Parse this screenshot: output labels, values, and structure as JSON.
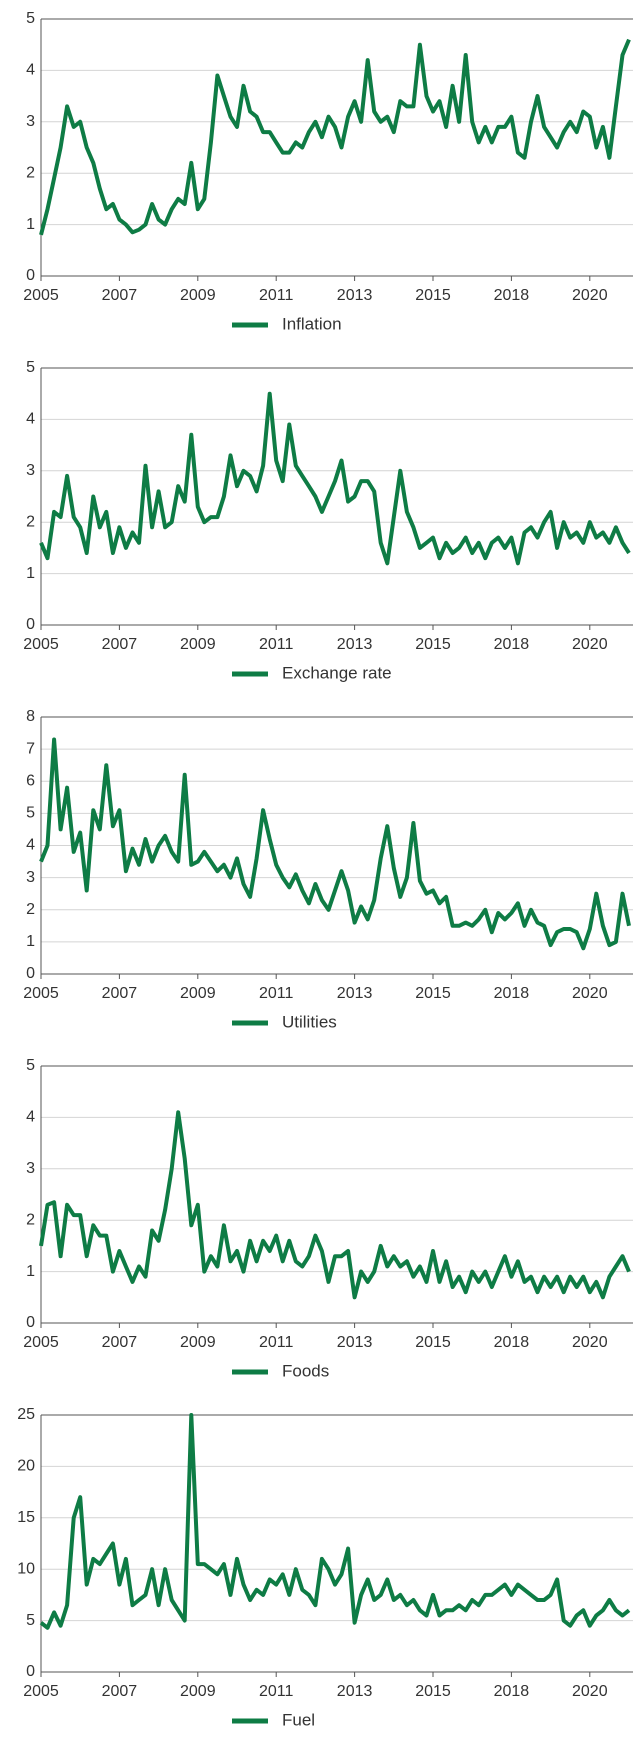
{
  "chart_data": [
    {
      "type": "line",
      "xlim": [
        0,
        90
      ],
      "ylim": [
        0,
        5
      ],
      "yticks": [
        0,
        1,
        2,
        3,
        4,
        5
      ],
      "grid": true,
      "xticks": [
        {
          "value": 0,
          "label": "2005"
        },
        {
          "value": 12,
          "label": "2007"
        },
        {
          "value": 24,
          "label": "2009"
        },
        {
          "value": 36,
          "label": "2011"
        },
        {
          "value": 48,
          "label": "2013"
        },
        {
          "value": 60,
          "label": "2015"
        },
        {
          "value": 72,
          "label": "2018"
        },
        {
          "value": 84,
          "label": "2020"
        }
      ],
      "series": [
        {
          "name": "Inflation",
          "color": "#0e7c45",
          "values": [
            0.8,
            1.3,
            1.9,
            2.5,
            3.3,
            2.9,
            3.0,
            2.5,
            2.2,
            1.7,
            1.3,
            1.4,
            1.1,
            1.0,
            0.85,
            0.9,
            1.0,
            1.4,
            1.1,
            1.0,
            1.3,
            1.5,
            1.4,
            2.2,
            1.3,
            1.5,
            2.6,
            3.9,
            3.5,
            3.1,
            2.9,
            3.7,
            3.2,
            3.1,
            2.8,
            2.8,
            2.6,
            2.4,
            2.4,
            2.6,
            2.5,
            2.8,
            3.0,
            2.7,
            3.1,
            2.9,
            2.5,
            3.1,
            3.4,
            3.0,
            4.2,
            3.2,
            3.0,
            3.1,
            2.8,
            3.4,
            3.3,
            3.3,
            4.5,
            3.5,
            3.2,
            3.4,
            2.9,
            3.7,
            3.0,
            4.3,
            3.0,
            2.6,
            2.9,
            2.6,
            2.9,
            2.9,
            3.1,
            2.4,
            2.3,
            3.0,
            3.5,
            2.9,
            2.7,
            2.5,
            2.8,
            3.0,
            2.8,
            3.2,
            3.1,
            2.5,
            2.9,
            2.3,
            3.3,
            4.3,
            4.6
          ]
        }
      ]
    },
    {
      "type": "line",
      "xlim": [
        0,
        90
      ],
      "ylim": [
        0,
        5
      ],
      "yticks": [
        0,
        1,
        2,
        3,
        4,
        5
      ],
      "grid": true,
      "xticks": [
        {
          "value": 0,
          "label": "2005"
        },
        {
          "value": 12,
          "label": "2007"
        },
        {
          "value": 24,
          "label": "2009"
        },
        {
          "value": 36,
          "label": "2011"
        },
        {
          "value": 48,
          "label": "2013"
        },
        {
          "value": 60,
          "label": "2015"
        },
        {
          "value": 72,
          "label": "2018"
        },
        {
          "value": 84,
          "label": "2020"
        }
      ],
      "series": [
        {
          "name": "Exchange rate",
          "color": "#0e7c45",
          "values": [
            1.6,
            1.3,
            2.2,
            2.1,
            2.9,
            2.1,
            1.9,
            1.4,
            2.5,
            1.9,
            2.2,
            1.4,
            1.9,
            1.5,
            1.8,
            1.6,
            3.1,
            1.9,
            2.6,
            1.9,
            2.0,
            2.7,
            2.4,
            3.7,
            2.3,
            2.0,
            2.1,
            2.1,
            2.5,
            3.3,
            2.7,
            3.0,
            2.9,
            2.6,
            3.1,
            4.5,
            3.2,
            2.8,
            3.9,
            3.1,
            2.9,
            2.7,
            2.5,
            2.2,
            2.5,
            2.8,
            3.2,
            2.4,
            2.5,
            2.8,
            2.8,
            2.6,
            1.6,
            1.2,
            2.1,
            3.0,
            2.2,
            1.9,
            1.5,
            1.6,
            1.7,
            1.3,
            1.6,
            1.4,
            1.5,
            1.7,
            1.4,
            1.6,
            1.3,
            1.6,
            1.7,
            1.5,
            1.7,
            1.2,
            1.8,
            1.9,
            1.7,
            2.0,
            2.2,
            1.5,
            2.0,
            1.7,
            1.8,
            1.6,
            2.0,
            1.7,
            1.8,
            1.6,
            1.9,
            1.6,
            1.4
          ]
        }
      ]
    },
    {
      "type": "line",
      "xlim": [
        0,
        90
      ],
      "ylim": [
        0,
        8
      ],
      "yticks": [
        0,
        1,
        2,
        3,
        4,
        5,
        6,
        7,
        8
      ],
      "grid": true,
      "xticks": [
        {
          "value": 0,
          "label": "2005"
        },
        {
          "value": 12,
          "label": "2007"
        },
        {
          "value": 24,
          "label": "2009"
        },
        {
          "value": 36,
          "label": "2011"
        },
        {
          "value": 48,
          "label": "2013"
        },
        {
          "value": 60,
          "label": "2015"
        },
        {
          "value": 72,
          "label": "2018"
        },
        {
          "value": 84,
          "label": "2020"
        }
      ],
      "series": [
        {
          "name": "Utilities",
          "color": "#0e7c45",
          "values": [
            3.5,
            4.0,
            7.3,
            4.5,
            5.8,
            3.8,
            4.4,
            2.6,
            5.1,
            4.5,
            6.5,
            4.6,
            5.1,
            3.2,
            3.9,
            3.4,
            4.2,
            3.5,
            4.0,
            4.3,
            3.8,
            3.5,
            6.2,
            3.4,
            3.5,
            3.8,
            3.5,
            3.2,
            3.4,
            3.0,
            3.6,
            2.8,
            2.4,
            3.6,
            5.1,
            4.2,
            3.4,
            3.0,
            2.7,
            3.1,
            2.6,
            2.2,
            2.8,
            2.3,
            2.0,
            2.6,
            3.2,
            2.6,
            1.6,
            2.1,
            1.7,
            2.3,
            3.6,
            4.6,
            3.3,
            2.4,
            3.0,
            4.7,
            2.9,
            2.5,
            2.6,
            2.2,
            2.4,
            1.5,
            1.5,
            1.6,
            1.5,
            1.7,
            2.0,
            1.3,
            1.9,
            1.7,
            1.9,
            2.2,
            1.5,
            2.0,
            1.6,
            1.5,
            0.9,
            1.3,
            1.4,
            1.4,
            1.3,
            0.8,
            1.4,
            2.5,
            1.5,
            0.9,
            1.0,
            2.5,
            1.5
          ]
        }
      ]
    },
    {
      "type": "line",
      "xlim": [
        0,
        90
      ],
      "ylim": [
        0,
        5
      ],
      "yticks": [
        0,
        1,
        2,
        3,
        4,
        5
      ],
      "grid": true,
      "xticks": [
        {
          "value": 0,
          "label": "2005"
        },
        {
          "value": 12,
          "label": "2007"
        },
        {
          "value": 24,
          "label": "2009"
        },
        {
          "value": 36,
          "label": "2011"
        },
        {
          "value": 48,
          "label": "2013"
        },
        {
          "value": 60,
          "label": "2015"
        },
        {
          "value": 72,
          "label": "2018"
        },
        {
          "value": 84,
          "label": "2020"
        }
      ],
      "series": [
        {
          "name": "Foods",
          "color": "#0e7c45",
          "values": [
            1.5,
            2.3,
            2.35,
            1.3,
            2.3,
            2.1,
            2.1,
            1.3,
            1.9,
            1.7,
            1.7,
            1.0,
            1.4,
            1.1,
            0.8,
            1.1,
            0.9,
            1.8,
            1.6,
            2.2,
            3.0,
            4.1,
            3.2,
            1.9,
            2.3,
            1.0,
            1.3,
            1.1,
            1.9,
            1.2,
            1.4,
            1.0,
            1.6,
            1.2,
            1.6,
            1.4,
            1.7,
            1.2,
            1.6,
            1.2,
            1.1,
            1.3,
            1.7,
            1.4,
            0.8,
            1.3,
            1.3,
            1.4,
            0.5,
            1.0,
            0.8,
            1.0,
            1.5,
            1.1,
            1.3,
            1.1,
            1.2,
            0.9,
            1.1,
            0.8,
            1.4,
            0.8,
            1.2,
            0.7,
            0.9,
            0.6,
            1.0,
            0.8,
            1.0,
            0.7,
            1.0,
            1.3,
            0.9,
            1.2,
            0.8,
            0.9,
            0.6,
            0.9,
            0.7,
            0.9,
            0.6,
            0.9,
            0.7,
            0.9,
            0.6,
            0.8,
            0.5,
            0.9,
            1.1,
            1.3,
            1.0
          ]
        }
      ]
    },
    {
      "type": "line",
      "xlim": [
        0,
        90
      ],
      "ylim": [
        0,
        25
      ],
      "yticks": [
        0,
        5,
        10,
        15,
        20,
        25
      ],
      "grid": true,
      "xticks": [
        {
          "value": 0,
          "label": "2005"
        },
        {
          "value": 12,
          "label": "2007"
        },
        {
          "value": 24,
          "label": "2009"
        },
        {
          "value": 36,
          "label": "2011"
        },
        {
          "value": 48,
          "label": "2013"
        },
        {
          "value": 60,
          "label": "2015"
        },
        {
          "value": 72,
          "label": "2018"
        },
        {
          "value": 84,
          "label": "2020"
        }
      ],
      "series": [
        {
          "name": "Fuel",
          "color": "#0e7c45",
          "values": [
            4.8,
            4.3,
            5.8,
            4.5,
            6.5,
            15.0,
            17.0,
            8.5,
            11.0,
            10.5,
            11.5,
            12.5,
            8.5,
            11.0,
            6.5,
            7.0,
            7.5,
            10.0,
            6.5,
            10.0,
            7.0,
            6.0,
            5.0,
            25.0,
            10.5,
            10.5,
            10.0,
            9.5,
            10.5,
            7.5,
            11.0,
            8.5,
            7.0,
            8.0,
            7.5,
            9.0,
            8.5,
            9.5,
            7.5,
            10.0,
            8.0,
            7.5,
            6.5,
            11.0,
            10.0,
            8.5,
            9.5,
            12.0,
            4.8,
            7.5,
            9.0,
            7.0,
            7.5,
            9.0,
            7.0,
            7.5,
            6.5,
            7.0,
            6.0,
            5.5,
            7.5,
            5.5,
            6.0,
            6.0,
            6.5,
            6.0,
            7.0,
            6.5,
            7.5,
            7.5,
            8.0,
            8.5,
            7.5,
            8.5,
            8.0,
            7.5,
            7.0,
            7.0,
            7.5,
            9.0,
            5.0,
            4.5,
            5.5,
            6.0,
            4.5,
            5.5,
            6.0,
            7.0,
            6.0,
            5.5,
            6.0
          ]
        }
      ]
    }
  ]
}
